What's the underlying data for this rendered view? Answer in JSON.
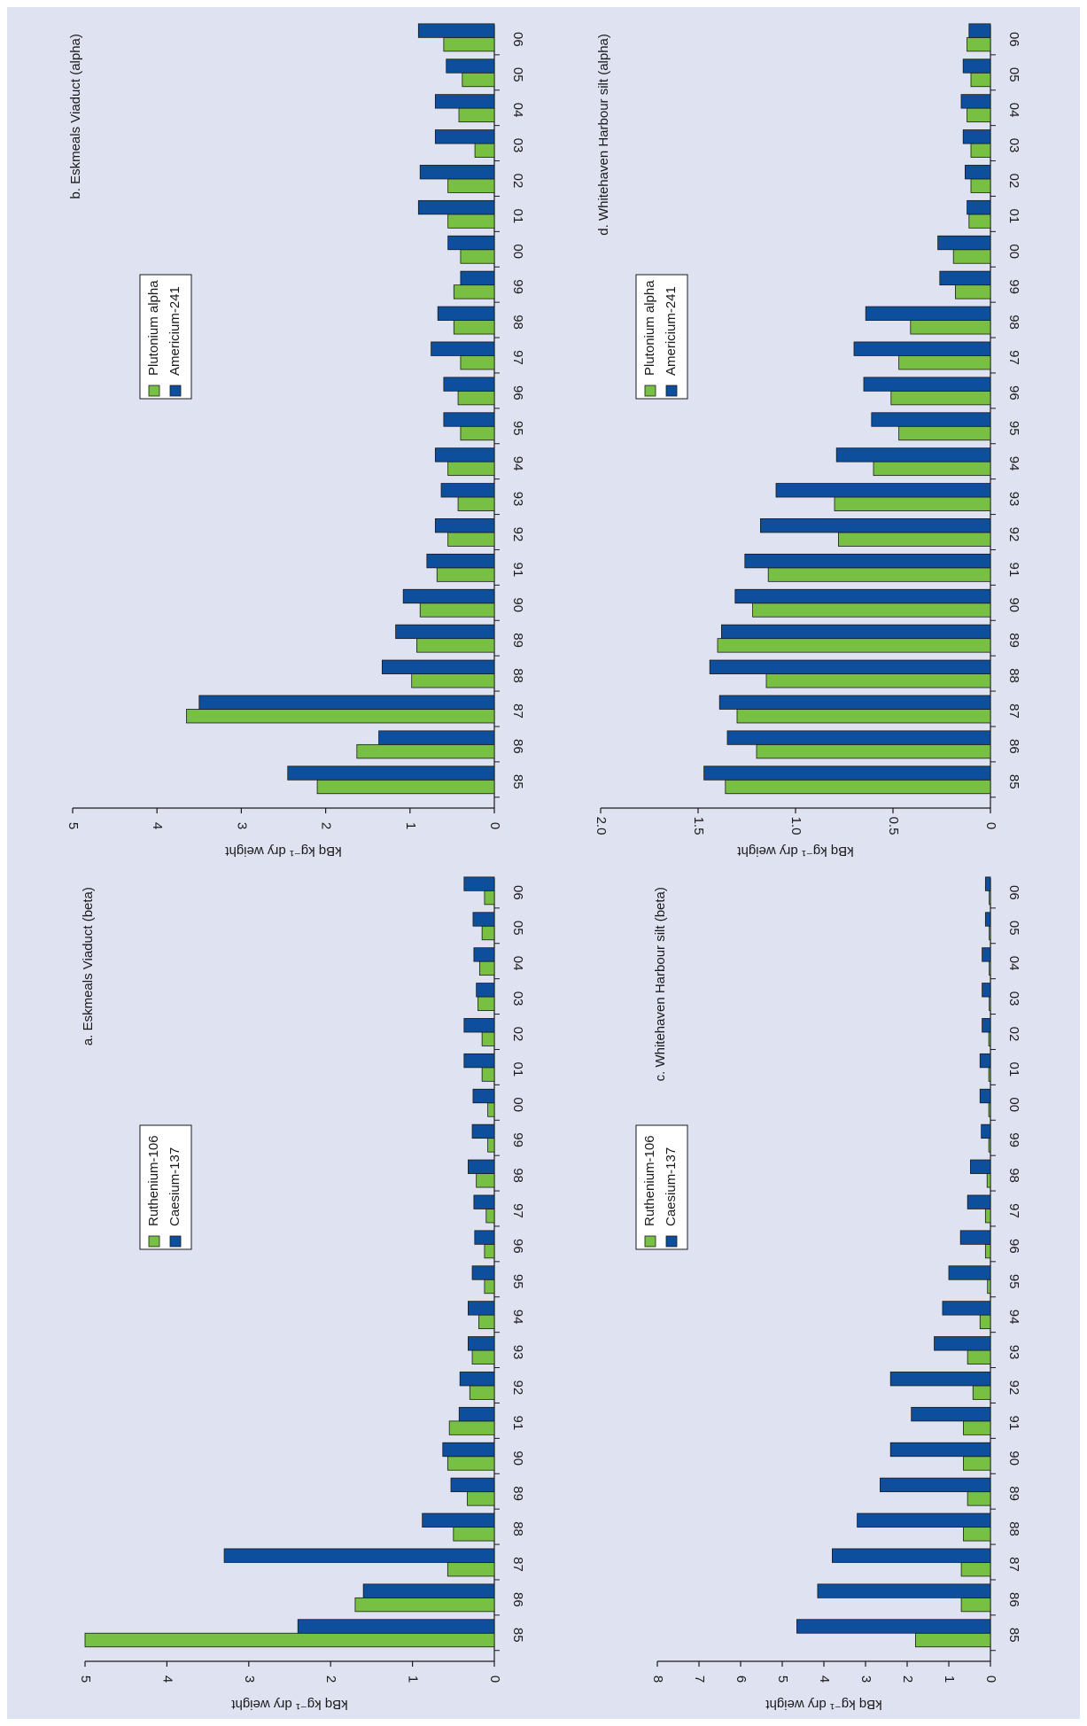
{
  "colors": {
    "background": "#dfe2f1",
    "green": "#77c043",
    "blue": "#0d4f9c"
  },
  "chart_data": [
    {
      "type": "bar",
      "orientation": "rotated 90° (bars horizontal, page rotated)",
      "title": "a. Eskmeals Viaduct (beta)",
      "ylabel": "kBq kg⁻¹ dry weight",
      "ylim": [
        0,
        5
      ],
      "yticks": [
        "0",
        "1",
        "2",
        "3",
        "4",
        "5"
      ],
      "categories": [
        "85",
        "86",
        "87",
        "88",
        "89",
        "90",
        "91",
        "92",
        "93",
        "94",
        "95",
        "96",
        "97",
        "98",
        "99",
        "00",
        "01",
        "02",
        "03",
        "04",
        "05",
        "06"
      ],
      "series": [
        {
          "name": "Ruthenium-106",
          "color": "green",
          "values": [
            5.0,
            1.7,
            0.57,
            0.5,
            0.33,
            0.57,
            0.55,
            0.3,
            0.27,
            0.19,
            0.12,
            0.12,
            0.1,
            0.22,
            0.08,
            0.08,
            0.15,
            0.15,
            0.2,
            0.18,
            0.15,
            0.12
          ]
        },
        {
          "name": "Caesium-137",
          "color": "blue",
          "values": [
            2.4,
            1.6,
            3.3,
            0.88,
            0.53,
            0.63,
            0.43,
            0.42,
            0.32,
            0.32,
            0.27,
            0.24,
            0.25,
            0.32,
            0.27,
            0.26,
            0.37,
            0.37,
            0.22,
            0.25,
            0.26,
            0.37
          ]
        }
      ],
      "legend_position": "top-center"
    },
    {
      "type": "bar",
      "orientation": "rotated 90° (bars horizontal, page rotated)",
      "title": "b. Eskmeals Viaduct (alpha)",
      "ylabel": "kBq kg⁻¹ dry weight",
      "ylim": [
        0,
        5
      ],
      "yticks": [
        "0",
        "1",
        "2",
        "3",
        "4",
        "5"
      ],
      "categories": [
        "85",
        "86",
        "87",
        "88",
        "89",
        "90",
        "91",
        "92",
        "93",
        "94",
        "95",
        "96",
        "97",
        "98",
        "99",
        "00",
        "01",
        "02",
        "03",
        "04",
        "05",
        "06"
      ],
      "series": [
        {
          "name": "Plutonium alpha",
          "color": "green",
          "values": [
            2.1,
            1.63,
            3.65,
            0.98,
            0.92,
            0.88,
            0.68,
            0.55,
            0.43,
            0.55,
            0.4,
            0.43,
            0.4,
            0.48,
            0.48,
            0.4,
            0.55,
            0.55,
            0.23,
            0.42,
            0.38,
            0.6
          ]
        },
        {
          "name": "Americium-241",
          "color": "blue",
          "values": [
            2.45,
            1.37,
            3.5,
            1.33,
            1.17,
            1.08,
            0.8,
            0.7,
            0.63,
            0.7,
            0.6,
            0.6,
            0.75,
            0.67,
            0.4,
            0.55,
            0.9,
            0.88,
            0.7,
            0.7,
            0.57,
            0.9
          ]
        }
      ],
      "legend_position": "top-center"
    },
    {
      "type": "bar",
      "orientation": "rotated 90° (bars horizontal, page rotated)",
      "title": "c. Whitehaven Harbour silt (beta)",
      "ylabel": "kBq kg⁻¹ dry weight",
      "ylim": [
        0,
        8
      ],
      "yticks": [
        "0",
        "1",
        "2",
        "3",
        "4",
        "5",
        "6",
        "7",
        "8"
      ],
      "categories": [
        "85",
        "86",
        "87",
        "88",
        "89",
        "90",
        "91",
        "92",
        "93",
        "94",
        "95",
        "96",
        "97",
        "98",
        "99",
        "00",
        "01",
        "02",
        "03",
        "04",
        "05",
        "06"
      ],
      "series": [
        {
          "name": "Ruthenium-106",
          "color": "green",
          "values": [
            1.8,
            0.7,
            0.7,
            0.65,
            0.55,
            0.65,
            0.65,
            0.42,
            0.55,
            0.25,
            0.07,
            0.12,
            0.12,
            0.08,
            0.04,
            0.04,
            0.04,
            0.04,
            0.03,
            0.03,
            0.03,
            0.03
          ]
        },
        {
          "name": "Caesium-137",
          "color": "blue",
          "values": [
            4.65,
            4.15,
            3.8,
            3.2,
            2.65,
            2.4,
            1.9,
            2.4,
            1.35,
            1.15,
            1.0,
            0.72,
            0.55,
            0.48,
            0.22,
            0.25,
            0.25,
            0.2,
            0.2,
            0.2,
            0.12,
            0.12
          ]
        }
      ],
      "legend_position": "top-center"
    },
    {
      "type": "bar",
      "orientation": "rotated 90° (bars horizontal, page rotated)",
      "title": "d. Whitehaven Harbour silt (alpha)",
      "ylabel": "kBq kg⁻¹ dry weight",
      "ylim": [
        0,
        2.0
      ],
      "yticks": [
        "0",
        "0.5",
        "1.0",
        "1.5",
        "2.0"
      ],
      "categories": [
        "85",
        "86",
        "87",
        "88",
        "89",
        "90",
        "91",
        "92",
        "93",
        "94",
        "95",
        "96",
        "97",
        "98",
        "99",
        "00",
        "01",
        "02",
        "03",
        "04",
        "05",
        "06"
      ],
      "series": [
        {
          "name": "Plutonium alpha",
          "color": "green",
          "values": [
            1.36,
            1.2,
            1.3,
            1.15,
            1.4,
            1.22,
            1.14,
            0.78,
            0.8,
            0.6,
            0.47,
            0.51,
            0.47,
            0.41,
            0.18,
            0.19,
            0.11,
            0.1,
            0.1,
            0.12,
            0.1,
            0.12
          ]
        },
        {
          "name": "Americium-241",
          "color": "blue",
          "values": [
            1.47,
            1.35,
            1.39,
            1.44,
            1.38,
            1.31,
            1.26,
            1.18,
            1.1,
            0.79,
            0.61,
            0.65,
            0.7,
            0.64,
            0.26,
            0.27,
            0.12,
            0.13,
            0.14,
            0.15,
            0.14,
            0.11
          ]
        }
      ],
      "legend_position": "top-center"
    }
  ]
}
